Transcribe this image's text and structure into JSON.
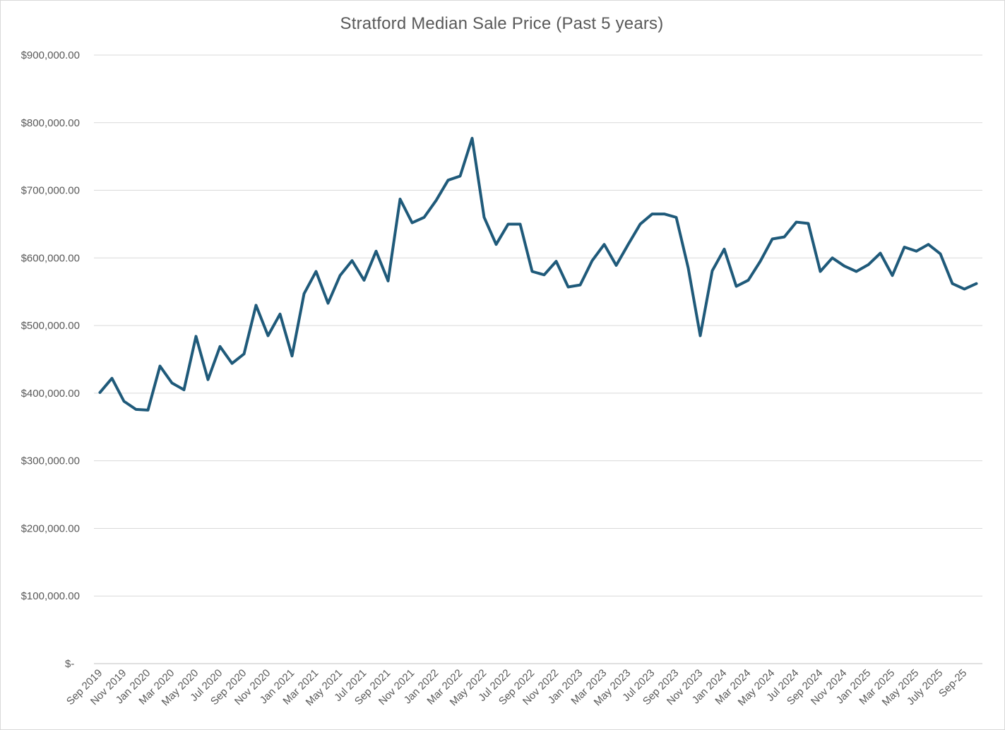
{
  "chart_data": {
    "type": "line",
    "title": "Stratford Median Sale Price (Past 5 years)",
    "xlabel": "",
    "ylabel": "",
    "ylim": [
      0,
      900000
    ],
    "grid": true,
    "legend": "none",
    "y_ticks": [
      {
        "value": 0,
        "label": "$-"
      },
      {
        "value": 100000,
        "label": "$100,000.00"
      },
      {
        "value": 200000,
        "label": "$200,000.00"
      },
      {
        "value": 300000,
        "label": "$300,000.00"
      },
      {
        "value": 400000,
        "label": "$400,000.00"
      },
      {
        "value": 500000,
        "label": "$500,000.00"
      },
      {
        "value": 600000,
        "label": "$600,000.00"
      },
      {
        "value": 700000,
        "label": "$700,000.00"
      },
      {
        "value": 800000,
        "label": "$800,000.00"
      },
      {
        "value": 900000,
        "label": "$900,000.00"
      }
    ],
    "x_tick_labels": [
      "Sep 2019",
      "Nov 2019",
      "Jan 2020",
      "Mar 2020",
      "May 2020",
      "Jul 2020",
      "Sep 2020",
      "Nov 2020",
      "Jan 2021",
      "Mar 2021",
      "May 2021",
      "Jul 2021",
      "Sep 2021",
      "Nov 2021",
      "Jan 2022",
      "Mar 2022",
      "May 2022",
      "Jul 2022",
      "Sep 2022",
      "Nov 2022",
      "Jan 2023",
      "Mar 2023",
      "May 2023",
      "Jul 2023",
      "Sep 2023",
      "Nov 2023",
      "Jan 2024",
      "Mar 2024",
      "May 2024",
      "Jul 2024",
      "Sep 2024",
      "Nov 2024",
      "Jan 2025",
      "Mar 2025",
      "May 2025",
      "July 2025",
      "Sep-25"
    ],
    "x_tick_every": 2,
    "color": "#1f5a7a",
    "series": [
      {
        "values": [
          401000,
          422000,
          388000,
          376000,
          375000,
          440000,
          415000,
          405000,
          484000,
          420000,
          469000,
          444000,
          458000,
          530000,
          485000,
          517000,
          455000,
          547000,
          580000,
          533000,
          574000,
          596000,
          567000,
          610000,
          566000,
          687000,
          652000,
          660000,
          685000,
          715000,
          721000,
          777000,
          660000,
          620000,
          650000,
          650000,
          580000,
          575000,
          595000,
          557000,
          560000,
          596000,
          620000,
          589000,
          620000,
          650000,
          665000,
          665000,
          660000,
          585000,
          485000,
          581000,
          613000,
          558000,
          567000,
          595000,
          628000,
          631000,
          653000,
          651000,
          580000,
          600000,
          588000,
          580000,
          590000,
          607000,
          574000,
          616000,
          610000,
          620000,
          606000,
          562000,
          554000,
          562000
        ]
      }
    ]
  }
}
